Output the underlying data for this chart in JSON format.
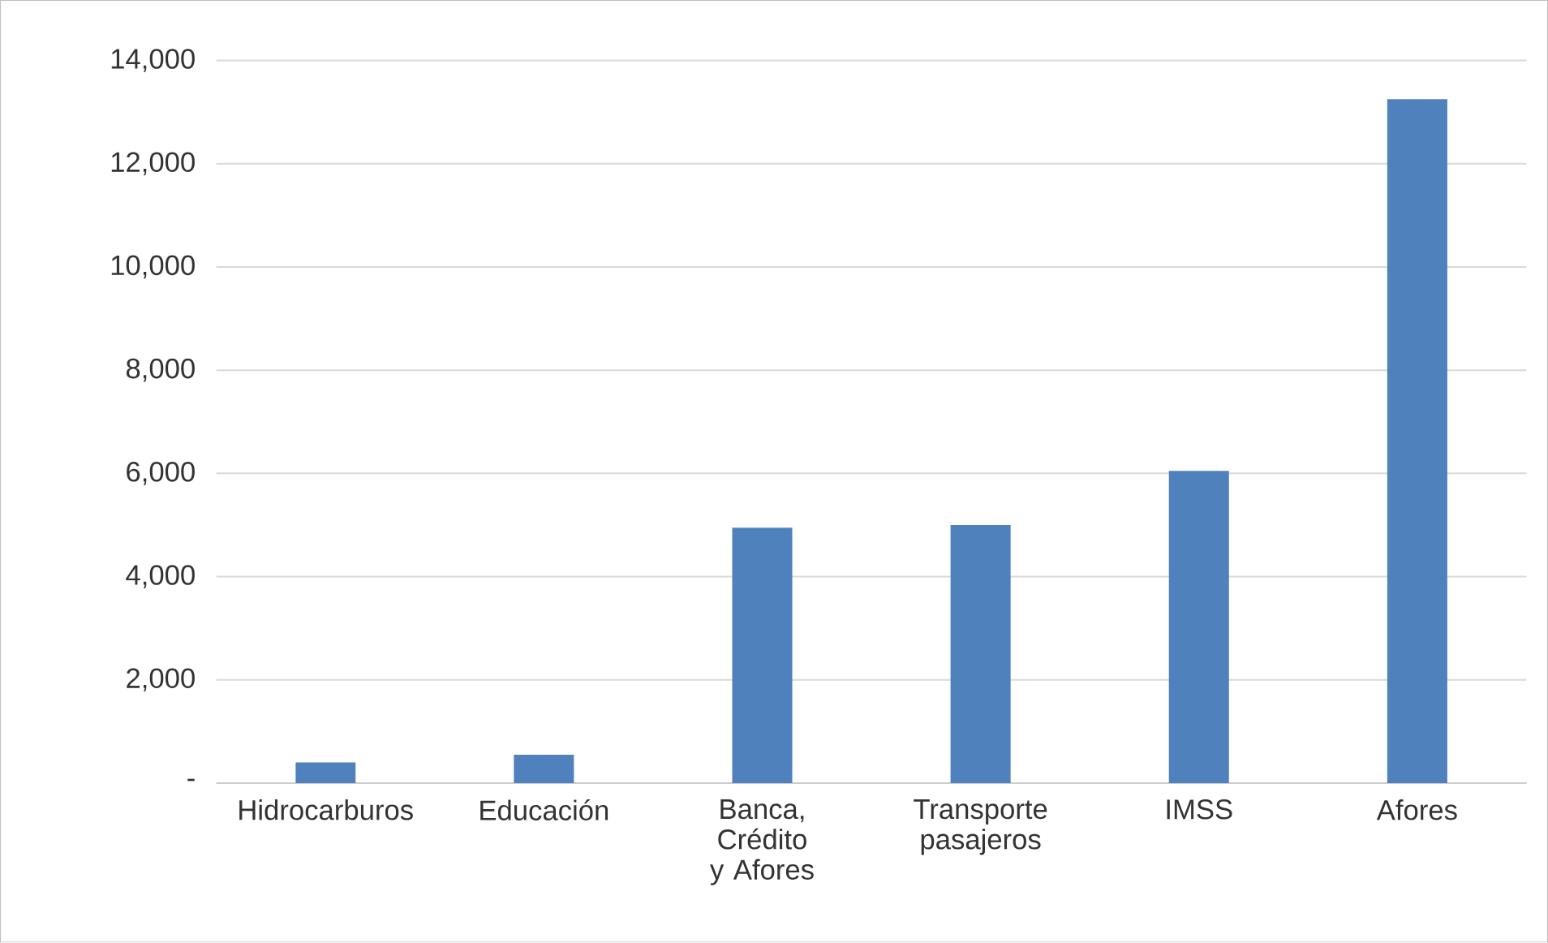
{
  "chart_data": {
    "type": "bar",
    "categories": [
      "Hidrocarburos",
      "Educación",
      "Banca, Crédito y Afores",
      "Transporte pasajeros",
      "IMSS",
      "Afores"
    ],
    "values": [
      400,
      550,
      4950,
      5000,
      6050,
      13250
    ],
    "color": "#4f81bd",
    "ylim": [
      0,
      14000
    ],
    "yticks": [
      {
        "value": 0,
        "label": "-"
      },
      {
        "value": 2000,
        "label": "2,000"
      },
      {
        "value": 4000,
        "label": "4,000"
      },
      {
        "value": 6000,
        "label": "6,000"
      },
      {
        "value": 8000,
        "label": "8,000"
      },
      {
        "value": 10000,
        "label": "10,000"
      },
      {
        "value": 12000,
        "label": "12,000"
      },
      {
        "value": 14000,
        "label": "14,000"
      }
    ],
    "grid": "y"
  }
}
